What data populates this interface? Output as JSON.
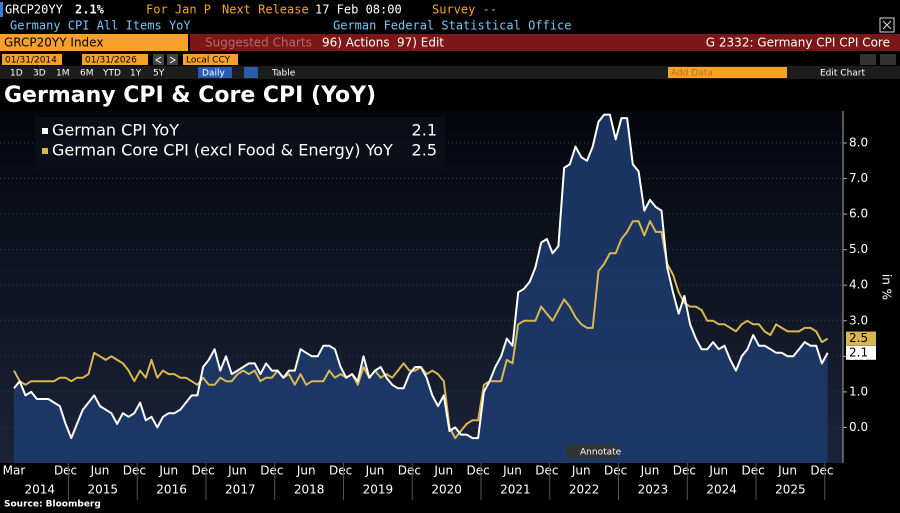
{
  "header": {
    "ticker": "GRCP20YY",
    "last": "2.1%",
    "period": "For Jan P",
    "release_label": "Next Release",
    "release": "17 Feb 08:00",
    "survey": "Survey --",
    "description": "Germany CPI All Items YoY",
    "source_org": "German Federal Statistical Office"
  },
  "toolbar": {
    "security": "GRCP20YY Index",
    "suggested": "Suggested Charts",
    "actions": "96) Actions",
    "edit": "97) Edit",
    "chart_id": "G 2332: Germany CPI CPI Core",
    "start_date": "01/31/2014",
    "end_date": "01/31/2026",
    "currency": "Local CCY",
    "periods": [
      "1D",
      "3D",
      "1M",
      "6M",
      "YTD",
      "1Y",
      "5Y"
    ],
    "frequency": "Daily",
    "table": "Table",
    "add_data": "Add Data",
    "edit_chart": "Edit Chart"
  },
  "chart_data": {
    "type": "line",
    "title": "Germany CPI & Core CPI (YoY)",
    "y_axis_label": "in %",
    "annotate": "Annotate",
    "source": "Source: Bloomberg",
    "categories": [
      "Mar",
      null,
      null,
      null,
      null,
      null,
      null,
      null,
      null,
      "Dec",
      null,
      null,
      null,
      null,
      null,
      "Jun",
      null,
      null,
      null,
      null,
      null,
      "Dec",
      null,
      null,
      null,
      null,
      null,
      "Jun",
      null,
      null,
      null,
      null,
      null,
      "Dec",
      null,
      null,
      null,
      null,
      null,
      "Jun",
      null,
      null,
      null,
      null,
      null,
      "Dec",
      null,
      null,
      null,
      null,
      null,
      "Jun",
      null,
      null,
      null,
      null,
      null,
      "Dec",
      null,
      null,
      null,
      null,
      null,
      "Jun",
      null,
      null,
      null,
      null,
      null,
      "Dec",
      null,
      null,
      null,
      null,
      null,
      "Jun",
      null,
      null,
      null,
      null,
      null,
      "Dec",
      null,
      null,
      null,
      null,
      null,
      "Jun",
      null,
      null,
      null,
      null,
      null,
      "Dec",
      null,
      null,
      null,
      null,
      null,
      "Jun",
      null,
      null,
      null,
      null,
      null,
      "Dec",
      null,
      null,
      null,
      null,
      null,
      "Jun",
      null,
      null,
      null,
      null,
      null,
      "Dec",
      null,
      null,
      null,
      null,
      null,
      "Jun",
      null,
      null,
      null,
      null,
      null,
      "Dec",
      null,
      null,
      null,
      null,
      null,
      "Jun",
      null,
      null,
      null,
      null,
      null,
      "Dec",
      null
    ],
    "year_labels": [
      "2014",
      "2015",
      "2016",
      "2017",
      "2018",
      "2019",
      "2020",
      "2021",
      "2022",
      "2023",
      "2024",
      "2025"
    ],
    "series": [
      {
        "name": "German CPI YoY",
        "color": "#ffffff",
        "area_color": "#1d3c6e",
        "values": [
          1.1,
          1.3,
          0.9,
          1.0,
          0.8,
          0.8,
          0.8,
          0.7,
          0.6,
          0.1,
          -0.3,
          0.1,
          0.5,
          0.7,
          0.9,
          0.6,
          0.5,
          0.4,
          0.1,
          0.4,
          0.3,
          0.4,
          0.7,
          0.2,
          0.3,
          0.0,
          0.3,
          0.4,
          0.4,
          0.5,
          0.7,
          0.9,
          0.9,
          1.7,
          1.9,
          2.2,
          1.6,
          2.0,
          1.5,
          1.6,
          1.7,
          1.8,
          1.8,
          1.5,
          1.8,
          1.6,
          1.6,
          1.4,
          1.6,
          1.6,
          2.2,
          2.1,
          2.0,
          2.0,
          2.3,
          2.3,
          2.2,
          1.7,
          1.4,
          1.5,
          1.3,
          2.0,
          1.4,
          1.6,
          1.7,
          1.4,
          1.2,
          1.1,
          1.1,
          1.5,
          1.7,
          1.7,
          1.4,
          0.9,
          0.6,
          0.9,
          -0.1,
          0.0,
          -0.2,
          -0.2,
          -0.3,
          -0.3,
          1.0,
          1.3,
          1.7,
          2.0,
          2.5,
          2.3,
          3.8,
          3.9,
          4.1,
          4.5,
          5.2,
          5.3,
          4.9,
          5.1,
          7.3,
          7.4,
          7.9,
          7.6,
          7.5,
          7.9,
          8.6,
          8.8,
          8.8,
          8.1,
          8.7,
          8.7,
          7.4,
          7.2,
          6.1,
          6.4,
          6.2,
          6.1,
          4.5,
          3.8,
          3.2,
          3.7,
          2.9,
          2.5,
          2.2,
          2.2,
          2.4,
          2.2,
          2.3,
          1.9,
          1.6,
          2.0,
          2.2,
          2.6,
          2.3,
          2.3,
          2.2,
          2.1,
          2.1,
          2.0,
          2.0,
          2.2,
          2.4,
          2.3,
          2.3,
          1.8,
          2.1
        ]
      },
      {
        "name": "German Core CPI (excl Food & Energy) YoY",
        "color": "#d9b650",
        "values": [
          1.6,
          1.3,
          1.2,
          1.3,
          1.3,
          1.3,
          1.3,
          1.3,
          1.4,
          1.4,
          1.3,
          1.4,
          1.4,
          1.5,
          2.1,
          2.0,
          1.9,
          2.0,
          1.9,
          1.8,
          1.6,
          1.3,
          1.6,
          1.4,
          1.9,
          1.4,
          1.6,
          1.5,
          1.5,
          1.4,
          1.4,
          1.3,
          1.2,
          1.4,
          1.2,
          1.2,
          1.4,
          1.3,
          1.3,
          1.5,
          1.6,
          1.5,
          1.6,
          1.3,
          1.4,
          1.4,
          1.6,
          1.4,
          1.5,
          1.2,
          1.5,
          1.2,
          1.3,
          1.3,
          1.3,
          1.6,
          1.4,
          1.5,
          1.4,
          1.5,
          1.2,
          1.7,
          1.4,
          1.6,
          1.4,
          1.5,
          1.4,
          1.6,
          1.8,
          1.6,
          1.6,
          1.7,
          1.5,
          1.6,
          1.5,
          1.3,
          0.0,
          -0.3,
          -0.1,
          0.1,
          0.2,
          0.2,
          1.2,
          1.3,
          1.3,
          1.3,
          1.9,
          1.8,
          2.9,
          3.0,
          3.0,
          3.0,
          3.4,
          3.2,
          3.0,
          3.3,
          3.6,
          3.4,
          3.1,
          2.9,
          2.8,
          2.8,
          4.4,
          4.6,
          4.9,
          4.9,
          5.3,
          5.5,
          5.8,
          5.8,
          5.4,
          5.8,
          5.5,
          5.5,
          4.6,
          4.3,
          3.8,
          3.5,
          3.4,
          3.4,
          3.3,
          3.0,
          3.0,
          2.9,
          2.9,
          2.8,
          2.7,
          2.9,
          3.0,
          2.9,
          2.9,
          2.7,
          2.6,
          2.9,
          2.8,
          2.7,
          2.7,
          2.7,
          2.8,
          2.8,
          2.7,
          2.4,
          2.5
        ]
      }
    ],
    "ylim": [
      -1,
      8.9
    ],
    "yticks": [
      {
        "value": 0,
        "label": "0.0"
      },
      {
        "value": 1,
        "label": "1.0"
      },
      {
        "value": 2,
        "label": "2.0"
      },
      {
        "value": 3,
        "label": "3.0"
      },
      {
        "value": 4,
        "label": "4.0"
      },
      {
        "value": 5,
        "label": "5.0"
      },
      {
        "value": 6,
        "label": "6.0"
      },
      {
        "value": 7,
        "label": "7.0"
      },
      {
        "value": 8,
        "label": "8.0"
      }
    ],
    "grid": true
  }
}
